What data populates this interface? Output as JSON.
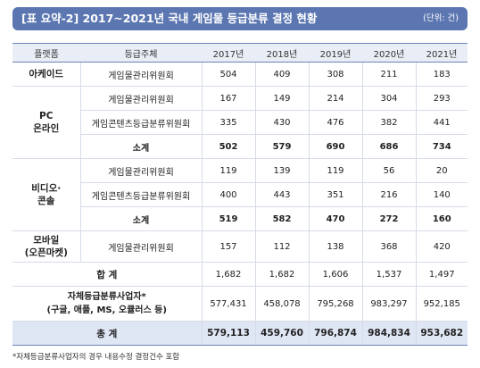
{
  "header": {
    "title": "[표 요약-2] 2017~2021년 국내 게임물 등급분류 결정 현황",
    "unit": "(단위: 건)"
  },
  "table": {
    "columns": [
      "플랫폼",
      "등급주체",
      "2017년",
      "2018년",
      "2019년",
      "2020년",
      "2021년"
    ],
    "arcade": {
      "platform": "아케이드",
      "rows": [
        {
          "org": "게임물관리위원회",
          "values": [
            "504",
            "409",
            "308",
            "211",
            "183"
          ]
        }
      ]
    },
    "pc": {
      "platform_line1": "PC",
      "platform_line2": "온라인",
      "rows": [
        {
          "org": "게임물관리위원회",
          "values": [
            "167",
            "149",
            "214",
            "304",
            "293"
          ]
        },
        {
          "org": "게임콘텐츠등급분류위원회",
          "values": [
            "335",
            "430",
            "476",
            "382",
            "441"
          ]
        },
        {
          "org": "소계",
          "values": [
            "502",
            "579",
            "690",
            "686",
            "734"
          ]
        }
      ]
    },
    "video": {
      "platform_line1": "비디오·",
      "platform_line2": "콘솔",
      "rows": [
        {
          "org": "게임물관리위원회",
          "values": [
            "119",
            "139",
            "119",
            "56",
            "20"
          ]
        },
        {
          "org": "게임콘텐츠등급분류위원회",
          "values": [
            "400",
            "443",
            "351",
            "216",
            "140"
          ]
        },
        {
          "org": "소계",
          "values": [
            "519",
            "582",
            "470",
            "272",
            "160"
          ]
        }
      ]
    },
    "mobile": {
      "platform_line1": "모바일",
      "platform_line2": "(오픈마켓)",
      "rows": [
        {
          "org": "게임물관리위원회",
          "values": [
            "157",
            "112",
            "138",
            "368",
            "420"
          ]
        }
      ]
    },
    "sum": {
      "label": "합 계",
      "values": [
        "1,682",
        "1,682",
        "1,606",
        "1,537",
        "1,497"
      ]
    },
    "self": {
      "label_line1": "자체등급분류사업자*",
      "label_line2": "(구글, 애플, MS, 오큘러스 등)",
      "values": [
        "577,431",
        "458,078",
        "795,268",
        "983,297",
        "952,185"
      ]
    },
    "total": {
      "label": "총 계",
      "values": [
        "579,113",
        "459,760",
        "796,874",
        "984,834",
        "953,682"
      ]
    }
  },
  "footnote": "*자체등급분류사업자의 경우 내용수정 결정건수 포함",
  "colors": {
    "header_bg": "#5b76b0",
    "head_row_bg": "#e9edf6",
    "total_row_bg": "#dfe6f4",
    "rule": "#6d84b8"
  }
}
